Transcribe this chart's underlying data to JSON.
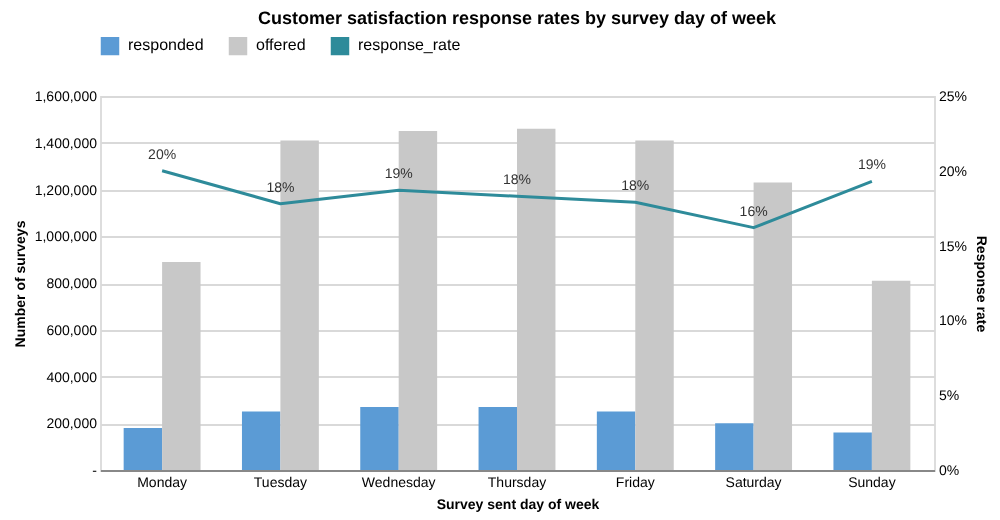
{
  "chart_data": {
    "type": "bar",
    "title": "Customer satisfaction response rates by survey day of week",
    "xlabel": "Survey sent day of week",
    "ylabel": "Number of surveys",
    "y2label": "Response rate",
    "categories": [
      "Monday",
      "Tuesday",
      "Wednesday",
      "Thursday",
      "Friday",
      "Saturday",
      "Sunday"
    ],
    "series": [
      {
        "name": "responded",
        "color": "#5b9bd5",
        "values": [
          180000,
          250000,
          270000,
          270000,
          250000,
          200000,
          160000
        ]
      },
      {
        "name": "offered",
        "color": "#c8c8c8",
        "values": [
          890000,
          1410000,
          1450000,
          1460000,
          1410000,
          1230000,
          810000
        ]
      },
      {
        "name": "response_rate",
        "type": "line",
        "axis": "y2",
        "color": "#2e8b9a",
        "line_style": "solid",
        "values": [
          20.0,
          17.8,
          18.7,
          18.3,
          17.9,
          16.2,
          19.3
        ],
        "value_labels": [
          "20%",
          "18%",
          "19%",
          "18%",
          "18%",
          "16%",
          "19%"
        ]
      }
    ],
    "ylim": [
      0,
      1600000
    ],
    "yticks": [
      {
        "value": 0,
        "label": "-"
      },
      {
        "value": 200000,
        "label": "200,000"
      },
      {
        "value": 400000,
        "label": "400,000"
      },
      {
        "value": 600000,
        "label": "600,000"
      },
      {
        "value": 800000,
        "label": "800,000"
      },
      {
        "value": 1000000,
        "label": "1,000,000"
      },
      {
        "value": 1200000,
        "label": "1,200,000"
      },
      {
        "value": 1400000,
        "label": "1,400,000"
      },
      {
        "value": 1600000,
        "label": "1,600,000"
      }
    ],
    "y2lim": [
      0,
      25
    ],
    "y2ticks": [
      {
        "value": 0,
        "label": "0%"
      },
      {
        "value": 5,
        "label": "5%"
      },
      {
        "value": 10,
        "label": "10%"
      },
      {
        "value": 15,
        "label": "15%"
      },
      {
        "value": 20,
        "label": "20%"
      },
      {
        "value": 25,
        "label": "25%"
      }
    ],
    "grid": "y",
    "legend": "top"
  }
}
